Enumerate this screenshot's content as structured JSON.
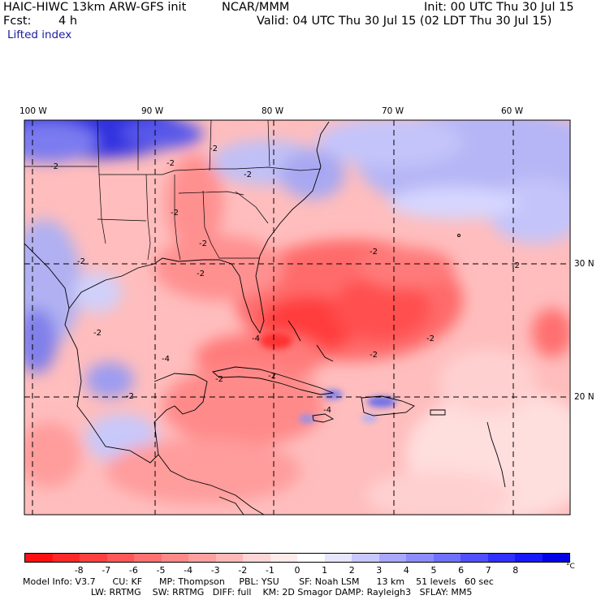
{
  "header": {
    "model_title": "HAIC-HIWC 13km ARW-GFS init",
    "org": "NCAR/MMM",
    "init": "Init: 00 UTC Thu 30 Jul 15",
    "fcst_label": "Fcst:",
    "fcst_value": "4 h",
    "valid": "Valid: 04 UTC Thu 30 Jul 15 (02 LDT Thu 30 Jul 15)",
    "field": "Lifted index"
  },
  "map": {
    "region": "Caribbean / Gulf of Mexico / Southeast US",
    "lon_labels": [
      "100 W",
      "90 W",
      "80 W",
      "70 W",
      "60 W"
    ],
    "lat_labels": [
      "30 N",
      "20 N"
    ],
    "contour_labels": [
      "-2",
      "-2",
      "-2",
      "-2",
      "-2",
      "-2",
      "-2",
      "-2",
      "-2",
      "-2",
      "-2",
      "-2",
      "-4",
      "-4",
      "-4",
      "-2",
      "-2",
      "-2",
      "-2"
    ],
    "colors": {
      "strong_negative": "#ff2020",
      "moderate_negative": "#ff8080",
      "weak_negative": "#ffc8c8",
      "neutral": "#ffffff",
      "weak_positive": "#c8c8ff",
      "moderate_positive": "#8080ff",
      "strong_positive": "#1010ff"
    }
  },
  "colorbar": {
    "labels": [
      "-8",
      "-7",
      "-6",
      "-5",
      "-4",
      "-3",
      "-2",
      "-1",
      "0",
      "1",
      "2",
      "3",
      "4",
      "5",
      "6",
      "7",
      "8"
    ],
    "unit": "°C",
    "colors": [
      "#ff1010",
      "#ff2828",
      "#ff4040",
      "#ff5858",
      "#ff7070",
      "#ff8888",
      "#ffa0a0",
      "#ffb8b8",
      "#ffd4d4",
      "#ffeaea",
      "#ffffff",
      "#e6e6ff",
      "#c8c8ff",
      "#a8a8ff",
      "#8c8cff",
      "#7070ff",
      "#5050ff",
      "#3030ff",
      "#1818ff",
      "#0000e6"
    ]
  },
  "model_info": {
    "line1": "Model Info: V3.7      CU: KF      MP: Thompson     PBL: YSU       SF: Noah LSM      13 km    51 levels   60 sec",
    "line2": "                        LW: RRTMG    SW: RRTMG   DIFF: full    KM: 2D Smagor DAMP: Rayleigh3   SFLAY: MM5"
  }
}
